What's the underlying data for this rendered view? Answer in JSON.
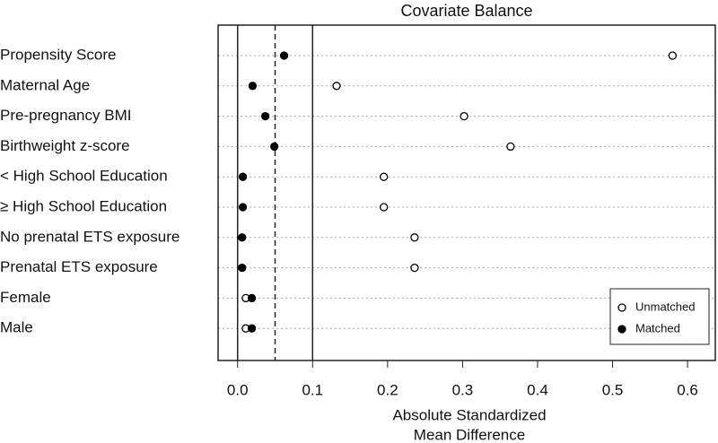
{
  "chart_data": {
    "type": "dotplot",
    "title": "Covariate Balance",
    "categories": [
      "Propensity Score",
      "Maternal Age",
      "Pre-pregnancy BMI",
      "Birthweight z-score",
      "< High School Education",
      "≥ High School Education",
      "No prenatal ETS exposure",
      "Prenatal ETS exposure",
      "Female",
      "Male"
    ],
    "series": [
      {
        "name": "Unmatched",
        "color": "#000000",
        "marker": "open",
        "values": [
          0.58,
          0.132,
          0.302,
          0.364,
          0.195,
          0.195,
          0.236,
          0.236,
          0.011,
          0.011
        ]
      },
      {
        "name": "Matched",
        "color": "#000000",
        "marker": "filled",
        "values": [
          0.062,
          0.02,
          0.037,
          0.049,
          0.007,
          0.007,
          0.006,
          0.006,
          0.019,
          0.019
        ]
      }
    ],
    "xlabel": [
      "Absolute Standardized",
      "Mean Difference"
    ],
    "xlim": [
      -0.026,
      0.637
    ],
    "xticks": [
      {
        "value": 0,
        "label": "0.0"
      },
      0.1,
      0.2,
      0.3,
      0.4,
      0.5,
      0.6
    ],
    "reference_lines": [
      {
        "value": 0,
        "style": "solid"
      },
      {
        "value": 0.05,
        "style": "dashed"
      },
      {
        "value": 0.1,
        "style": "solid"
      }
    ],
    "grid": true,
    "legend": "lower right"
  }
}
